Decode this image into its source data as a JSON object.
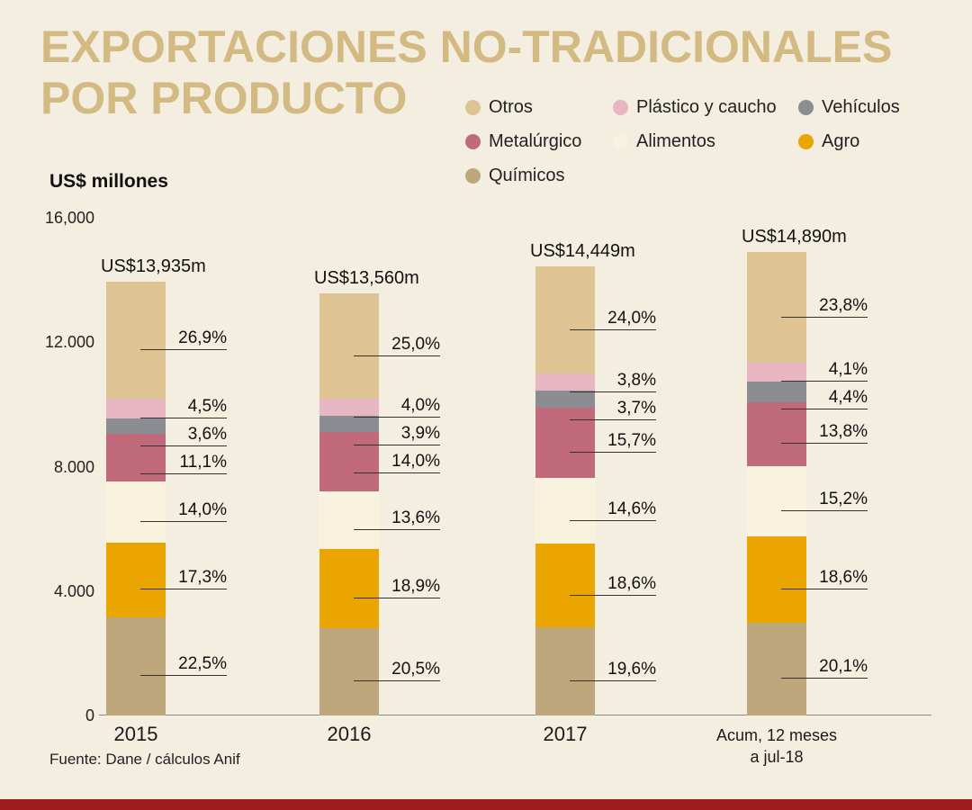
{
  "title": {
    "line1": "EXPORTACIONES NO-TRADICIONALES",
    "line2": "POR PRODUCTO"
  },
  "subtitle": "US$ millones",
  "source": "Fuente: Dane / cálculos Anif",
  "colors": {
    "background": "#f3eee0",
    "title": "#d3ba82",
    "text": "#1b1b1b",
    "axis_line": "#8b8b8b",
    "label_line": "#333333",
    "footer_bar": "#9e1b1e"
  },
  "chart_data": {
    "type": "bar",
    "stacked": true,
    "title": "EXPORTACIONES NO-TRADICIONALES POR PRODUCTO",
    "ylabel": "US$ millones",
    "ylim": [
      0,
      16000
    ],
    "grid": false,
    "legend_position": "top-right",
    "yticks": [
      {
        "label": "16,000",
        "value": 16000
      },
      {
        "label": "12.000",
        "value": 12000
      },
      {
        "label": "8.000",
        "value": 8000
      },
      {
        "label": "4.000",
        "value": 4000
      },
      {
        "label": "0",
        "value": 0
      }
    ],
    "categories": [
      "2015",
      "2016",
      "2017",
      "Acum, 12 meses\na jul-18"
    ],
    "totals": [
      13935,
      13560,
      14449,
      14890
    ],
    "total_labels": [
      "US$13,935m",
      "US$13,560m",
      "US$14,449m",
      "US$14,890m"
    ],
    "series_order_note": "listed top-to-bottom within each stacked bar",
    "series": [
      {
        "name": "Otros",
        "color": "#ddc492",
        "percent": [
          26.9,
          25.0,
          24.0,
          23.8
        ],
        "percent_labels": [
          "26,9%",
          "25,0%",
          "24,0%",
          "23,8%"
        ]
      },
      {
        "name": "Plástico y caucho",
        "color": "#e8b6c3",
        "percent": [
          4.5,
          4.0,
          3.8,
          4.1
        ],
        "percent_labels": [
          "4,5%",
          "4,0%",
          "3,8%",
          "4,1%"
        ]
      },
      {
        "name": "Vehículos",
        "color": "#8c8c93",
        "percent": [
          3.6,
          3.9,
          3.7,
          4.4
        ],
        "percent_labels": [
          "3,6%",
          "3,9%",
          "3,7%",
          "4,4%"
        ]
      },
      {
        "name": "Metalúrgico",
        "color": "#c16a7c",
        "percent": [
          11.1,
          14.0,
          15.7,
          13.8
        ],
        "percent_labels": [
          "11,1%",
          "14,0%",
          "15,7%",
          "13,8%"
        ]
      },
      {
        "name": "Alimentos",
        "color": "#f8f2de",
        "percent": [
          14.0,
          13.6,
          14.6,
          15.2
        ],
        "percent_labels": [
          "14,0%",
          "13,6%",
          "14,6%",
          "15,2%"
        ]
      },
      {
        "name": "Agro",
        "color": "#eaa500",
        "percent": [
          17.3,
          18.9,
          18.6,
          18.6
        ],
        "percent_labels": [
          "17,3%",
          "18,9%",
          "18,6%",
          "18,6%"
        ]
      },
      {
        "name": "Químicos",
        "color": "#bfa77d",
        "percent": [
          22.5,
          20.5,
          19.6,
          20.1
        ],
        "percent_labels": [
          "22,5%",
          "20,5%",
          "19,6%",
          "20,1%"
        ]
      }
    ]
  }
}
